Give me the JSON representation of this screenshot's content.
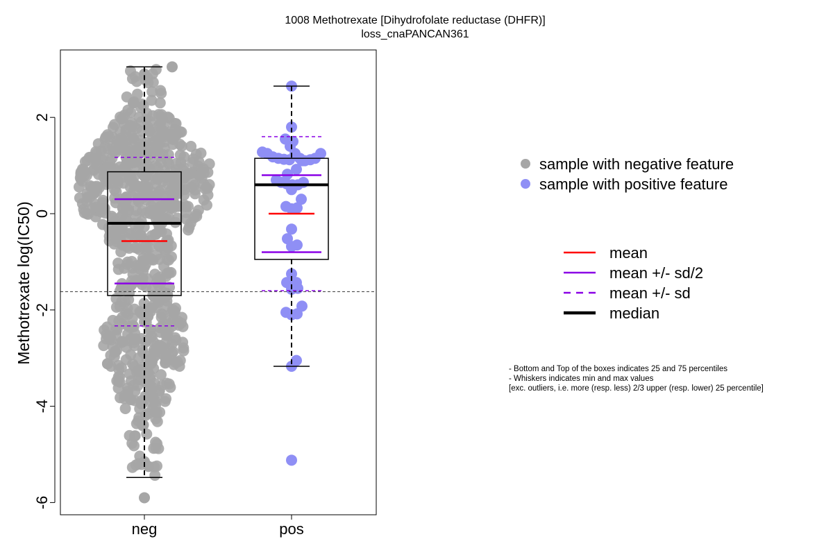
{
  "chart_data": {
    "type": "scatter",
    "title": "1008 Methotrexate [Dihydrofolate reductase (DHFR)]",
    "subtitle": "loss_cnaPANCAN361",
    "xlabel": "",
    "ylabel": "Methotrexate log(IC50)",
    "categories": [
      "neg",
      "pos"
    ],
    "yticks": [
      -6,
      -4,
      -2,
      0,
      2
    ],
    "ytick_labels": [
      "-6",
      "-4",
      "-2",
      "0",
      "2"
    ],
    "ylim": [
      -6.25,
      3.4
    ],
    "threshold_line": -1.62,
    "grid": false,
    "groups": [
      {
        "name": "neg",
        "box": {
          "q1": -1.7,
          "median": -0.2,
          "q3": 0.87,
          "whisker_low": -5.48,
          "whisker_high": 3.05
        },
        "mean": -0.57,
        "mean_minus_half_sd": -1.45,
        "mean_plus_half_sd": 0.3,
        "mean_minus_sd": -2.33,
        "mean_plus_sd": 1.17,
        "point_count": 820,
        "min_value": -5.9,
        "max_value": 3.05
      },
      {
        "name": "pos",
        "box": {
          "q1": -0.95,
          "median": 0.6,
          "q3": 1.15,
          "whisker_low": -3.17,
          "whisker_high": 2.65
        },
        "mean": 0.0,
        "mean_minus_half_sd": -0.8,
        "mean_plus_half_sd": 0.8,
        "mean_minus_sd": -1.6,
        "mean_plus_sd": 1.6,
        "points": [
          {
            "x": 0,
            "y": 2.65
          },
          {
            "x": 0,
            "y": 1.8
          },
          {
            "x": -0.45,
            "y": 1.55
          },
          {
            "x": 0.1,
            "y": 1.5
          },
          {
            "x": -0.1,
            "y": 1.4
          },
          {
            "x": 0.25,
            "y": 1.25
          },
          {
            "x": -2.1,
            "y": 1.28
          },
          {
            "x": -1.75,
            "y": 1.25
          },
          {
            "x": 2.1,
            "y": 1.25
          },
          {
            "x": -1.35,
            "y": 1.18
          },
          {
            "x": -0.95,
            "y": 1.15
          },
          {
            "x": -0.55,
            "y": 1.13
          },
          {
            "x": -0.15,
            "y": 1.12
          },
          {
            "x": 0.6,
            "y": 1.15
          },
          {
            "x": 0.95,
            "y": 1.1
          },
          {
            "x": 1.35,
            "y": 1.12
          },
          {
            "x": 1.7,
            "y": 1.15
          },
          {
            "x": 0.75,
            "y": 1.1
          },
          {
            "x": 0.35,
            "y": 0.92
          },
          {
            "x": -0.3,
            "y": 0.82
          },
          {
            "x": -1.1,
            "y": 0.7
          },
          {
            "x": -0.75,
            "y": 0.65
          },
          {
            "x": -0.35,
            "y": 0.62
          },
          {
            "x": 0.05,
            "y": 0.6
          },
          {
            "x": 0.45,
            "y": 0.6
          },
          {
            "x": 0.85,
            "y": 0.65
          },
          {
            "x": 0,
            "y": 0.5
          },
          {
            "x": 0.7,
            "y": 0.3
          },
          {
            "x": -0.4,
            "y": 0.15
          },
          {
            "x": 0,
            "y": 0.1
          },
          {
            "x": 0.4,
            "y": 0.12
          },
          {
            "x": 0,
            "y": -0.32
          },
          {
            "x": -0.3,
            "y": -0.52
          },
          {
            "x": 0,
            "y": -0.68
          },
          {
            "x": 0.4,
            "y": -0.65
          },
          {
            "x": 0,
            "y": -1.25
          },
          {
            "x": -0.35,
            "y": -1.43
          },
          {
            "x": 0.35,
            "y": -1.43
          },
          {
            "x": 0,
            "y": -1.57
          },
          {
            "x": 0.45,
            "y": -1.55
          },
          {
            "x": 0.75,
            "y": -1.92
          },
          {
            "x": -0.4,
            "y": -2.05
          },
          {
            "x": 0,
            "y": -2.1
          },
          {
            "x": 0.4,
            "y": -2.08
          },
          {
            "x": 0.35,
            "y": -3.05
          },
          {
            "x": 0,
            "y": -3.17
          },
          {
            "x": 0,
            "y": -5.12
          }
        ]
      }
    ],
    "legend": {
      "placement": "right",
      "points": [
        {
          "label": "sample with negative feature",
          "color": "#a6a6a6"
        },
        {
          "label": "sample with positive feature",
          "color": "#8f8ff5"
        }
      ],
      "lines": [
        {
          "label": "mean",
          "color": "#ff0000",
          "style": "solid"
        },
        {
          "label": "mean +/- sd/2",
          "color": "#8a00e6",
          "style": "solid"
        },
        {
          "label": "mean +/- sd",
          "color": "#8a00e6",
          "style": "dashed"
        },
        {
          "label": "median",
          "color": "#000000",
          "style": "thick"
        }
      ]
    },
    "notes": [
      "- Bottom and Top of the boxes indicates 25 and 75 percentiles",
      "- Whiskers indicates min and max values",
      "[exc. outliers, i.e. more (resp. less) 2/3 upper (resp. lower) 25 percentile]"
    ]
  }
}
